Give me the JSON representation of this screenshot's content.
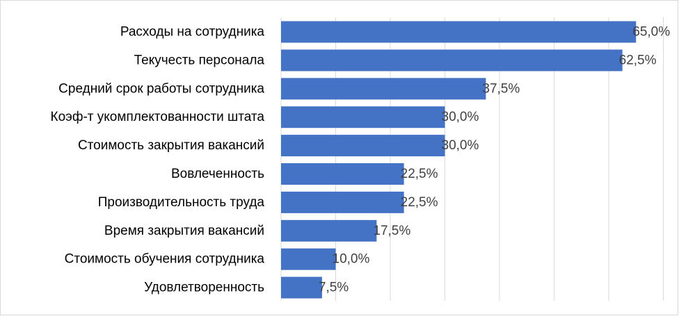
{
  "chart_data": {
    "type": "bar",
    "orientation": "horizontal",
    "categories": [
      "Расходы на сотрудника",
      "Текучесть персонала",
      "Средний срок работы сотрудника",
      "Коэф-т укомплектованности штата",
      "Стоимость закрытия вакансий",
      "Вовлеченность",
      "Производительность труда",
      "Время закрытия вакансий",
      "Стоимость обучения сотрудника",
      "Удовлетворенность"
    ],
    "values": [
      65.0,
      62.5,
      37.5,
      30.0,
      30.0,
      22.5,
      22.5,
      17.5,
      10.0,
      7.5
    ],
    "value_labels": [
      "65,0%",
      "62,5%",
      "37,5%",
      "30,0%",
      "30,0%",
      "22,5%",
      "22,5%",
      "17,5%",
      "10,0%",
      "7,5%"
    ],
    "xlim": [
      0,
      70
    ],
    "grid": true,
    "bar_color": "#4472c4",
    "gridline_color": "#d9d9d9"
  }
}
